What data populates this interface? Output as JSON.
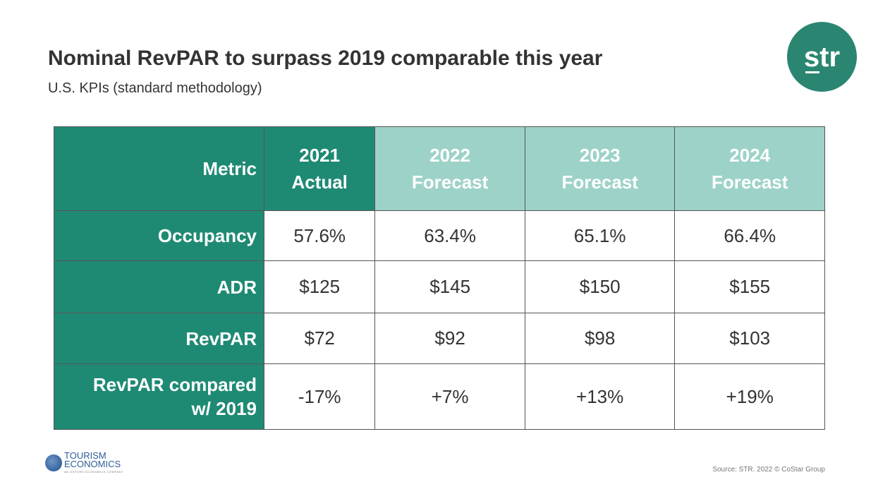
{
  "header": {
    "title": "Nominal RevPAR to surpass 2019 comparable this year",
    "subtitle": "U.S. KPIs (standard methodology)"
  },
  "logo": {
    "text": "str",
    "color": "#2a8671"
  },
  "colors": {
    "actual_header": "#1f8a74",
    "forecast_header": "#9dd2c8"
  },
  "table": {
    "columns": [
      {
        "line1": "Metric"
      },
      {
        "line1": "2021",
        "line2": "Actual"
      },
      {
        "line1": "2022",
        "line2": "Forecast"
      },
      {
        "line1": "2023",
        "line2": "Forecast"
      },
      {
        "line1": "2024",
        "line2": "Forecast"
      }
    ],
    "rows": [
      {
        "label": "Occupancy",
        "values": [
          "57.6%",
          "63.4%",
          "65.1%",
          "66.4%"
        ]
      },
      {
        "label": "ADR",
        "values": [
          "$125",
          "$145",
          "$150",
          "$155"
        ]
      },
      {
        "label": "RevPAR",
        "values": [
          "$72",
          "$92",
          "$98",
          "$103"
        ]
      },
      {
        "label": "RevPAR compared",
        "label2": "w/ 2019",
        "values": [
          "-17%",
          "+7%",
          "+13%",
          "+19%"
        ]
      }
    ]
  },
  "footer": {
    "partner_line1": "TOURISM",
    "partner_line2": "ECONOMICS",
    "partner_tagline": "AN OXFORD ECONOMICS COMPANY",
    "source": "Source: STR. 2022 © CoStar Group"
  }
}
